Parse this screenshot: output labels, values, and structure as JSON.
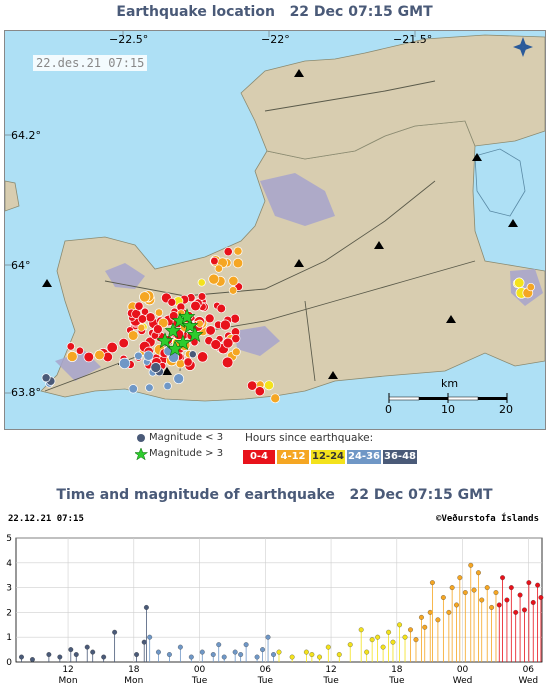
{
  "map": {
    "title": "Earthquake location",
    "title_time": "22 Dec 07:15 GMT",
    "timestamp": "22.des.21  07:15",
    "lon_labels": [
      "−22.5°",
      "−22°",
      "−21.5°"
    ],
    "lat_labels": [
      "64.2°",
      "64°",
      "63.8°"
    ],
    "scale": {
      "unit": "km",
      "ticks": [
        "0",
        "10",
        "20"
      ]
    },
    "colors": {
      "sea": "#aee0f5",
      "land": "#d8cdb0",
      "lake": "#aee0f5",
      "lava": "#a7a3cc"
    }
  },
  "legend": {
    "mag_small": "Magnitude < 3",
    "mag_large": "Magnitude > 3",
    "hours_label": "Hours since earthquake:",
    "hour_bins": [
      {
        "label": "0-4",
        "color": "#e8121b"
      },
      {
        "label": "4-12",
        "color": "#f5a623"
      },
      {
        "label": "12-24",
        "color": "#f3e21c"
      },
      {
        "label": "24-36",
        "color": "#6f97c6"
      },
      {
        "label": "36-48",
        "color": "#4a5a78"
      }
    ]
  },
  "chart": {
    "title": "Time and magnitude of earthquake",
    "title_time": "22 Dec 07:15 GMT",
    "date": "22.12.21 07:15",
    "credit": "©Veðurstofa Íslands",
    "y_ticks": [
      "0",
      "1",
      "2",
      "3",
      "4",
      "5"
    ],
    "x_ticks": [
      {
        "hour": "12",
        "day": "Mon"
      },
      {
        "hour": "18",
        "day": "Mon"
      },
      {
        "hour": "00",
        "day": "Tue"
      },
      {
        "hour": "06",
        "day": "Tue"
      },
      {
        "hour": "12",
        "day": "Tue"
      },
      {
        "hour": "18",
        "day": "Tue"
      },
      {
        "hour": "00",
        "day": "Wed"
      },
      {
        "hour": "06",
        "day": "Wed"
      }
    ]
  },
  "chart_data": {
    "type": "scatter",
    "title": "Time and magnitude of earthquake 22 Dec 07:15 GMT",
    "xlabel": "",
    "ylabel": "",
    "xlim_hours": [
      -48,
      0
    ],
    "ylim": [
      0,
      5
    ],
    "grid": true,
    "x_unit": "hours before 22 Dec 07:15",
    "points": [
      [
        -47.5,
        0.2
      ],
      [
        -46.5,
        0.1
      ],
      [
        -45,
        0.3
      ],
      [
        -44,
        0.2
      ],
      [
        -43,
        0.5
      ],
      [
        -42.5,
        0.3
      ],
      [
        -41.5,
        0.6
      ],
      [
        -41,
        0.4
      ],
      [
        -40,
        0.2
      ],
      [
        -39,
        1.2
      ],
      [
        -37,
        0.3
      ],
      [
        -36.3,
        0.8
      ],
      [
        -36.1,
        2.2
      ],
      [
        -35.8,
        1.0
      ],
      [
        -35,
        0.4
      ],
      [
        -34,
        0.3
      ],
      [
        -33,
        0.6
      ],
      [
        -32,
        0.2
      ],
      [
        -31,
        0.4
      ],
      [
        -30,
        0.3
      ],
      [
        -29.5,
        0.7
      ],
      [
        -29,
        0.2
      ],
      [
        -28,
        0.4
      ],
      [
        -27.5,
        0.3
      ],
      [
        -27,
        0.7
      ],
      [
        -26,
        0.2
      ],
      [
        -25.5,
        0.5
      ],
      [
        -25,
        1.0
      ],
      [
        -24.5,
        0.3
      ],
      [
        -24,
        0.4
      ],
      [
        -22.8,
        0.2
      ],
      [
        -21.5,
        0.4
      ],
      [
        -21,
        0.3
      ],
      [
        -20.3,
        0.2
      ],
      [
        -19.5,
        0.6
      ],
      [
        -18.5,
        0.3
      ],
      [
        -17.5,
        0.7
      ],
      [
        -16.5,
        1.3
      ],
      [
        -16,
        0.4
      ],
      [
        -15.5,
        0.9
      ],
      [
        -15,
        1.0
      ],
      [
        -14.5,
        0.6
      ],
      [
        -14,
        1.2
      ],
      [
        -13.6,
        0.8
      ],
      [
        -13,
        1.5
      ],
      [
        -12.5,
        1.0
      ],
      [
        -12,
        1.3
      ],
      [
        -11.5,
        0.9
      ],
      [
        -11,
        1.8
      ],
      [
        -10.7,
        1.4
      ],
      [
        -10.2,
        2.0
      ],
      [
        -10,
        3.2
      ],
      [
        -9.5,
        1.7
      ],
      [
        -9,
        2.6
      ],
      [
        -8.5,
        2.0
      ],
      [
        -8.2,
        3.0
      ],
      [
        -7.8,
        2.3
      ],
      [
        -7.5,
        3.4
      ],
      [
        -7,
        2.8
      ],
      [
        -6.5,
        3.9
      ],
      [
        -6.2,
        2.9
      ],
      [
        -5.8,
        3.6
      ],
      [
        -5.5,
        2.5
      ],
      [
        -5,
        3.0
      ],
      [
        -4.6,
        2.2
      ],
      [
        -4.2,
        2.8
      ],
      [
        -3.9,
        2.3
      ],
      [
        -3.6,
        3.4
      ],
      [
        -3.2,
        2.5
      ],
      [
        -2.8,
        3.0
      ],
      [
        -2.4,
        2.0
      ],
      [
        -2,
        2.7
      ],
      [
        -1.6,
        2.1
      ],
      [
        -1.2,
        3.2
      ],
      [
        -0.8,
        2.4
      ],
      [
        -0.4,
        3.1
      ],
      [
        -0.1,
        2.6
      ]
    ]
  }
}
